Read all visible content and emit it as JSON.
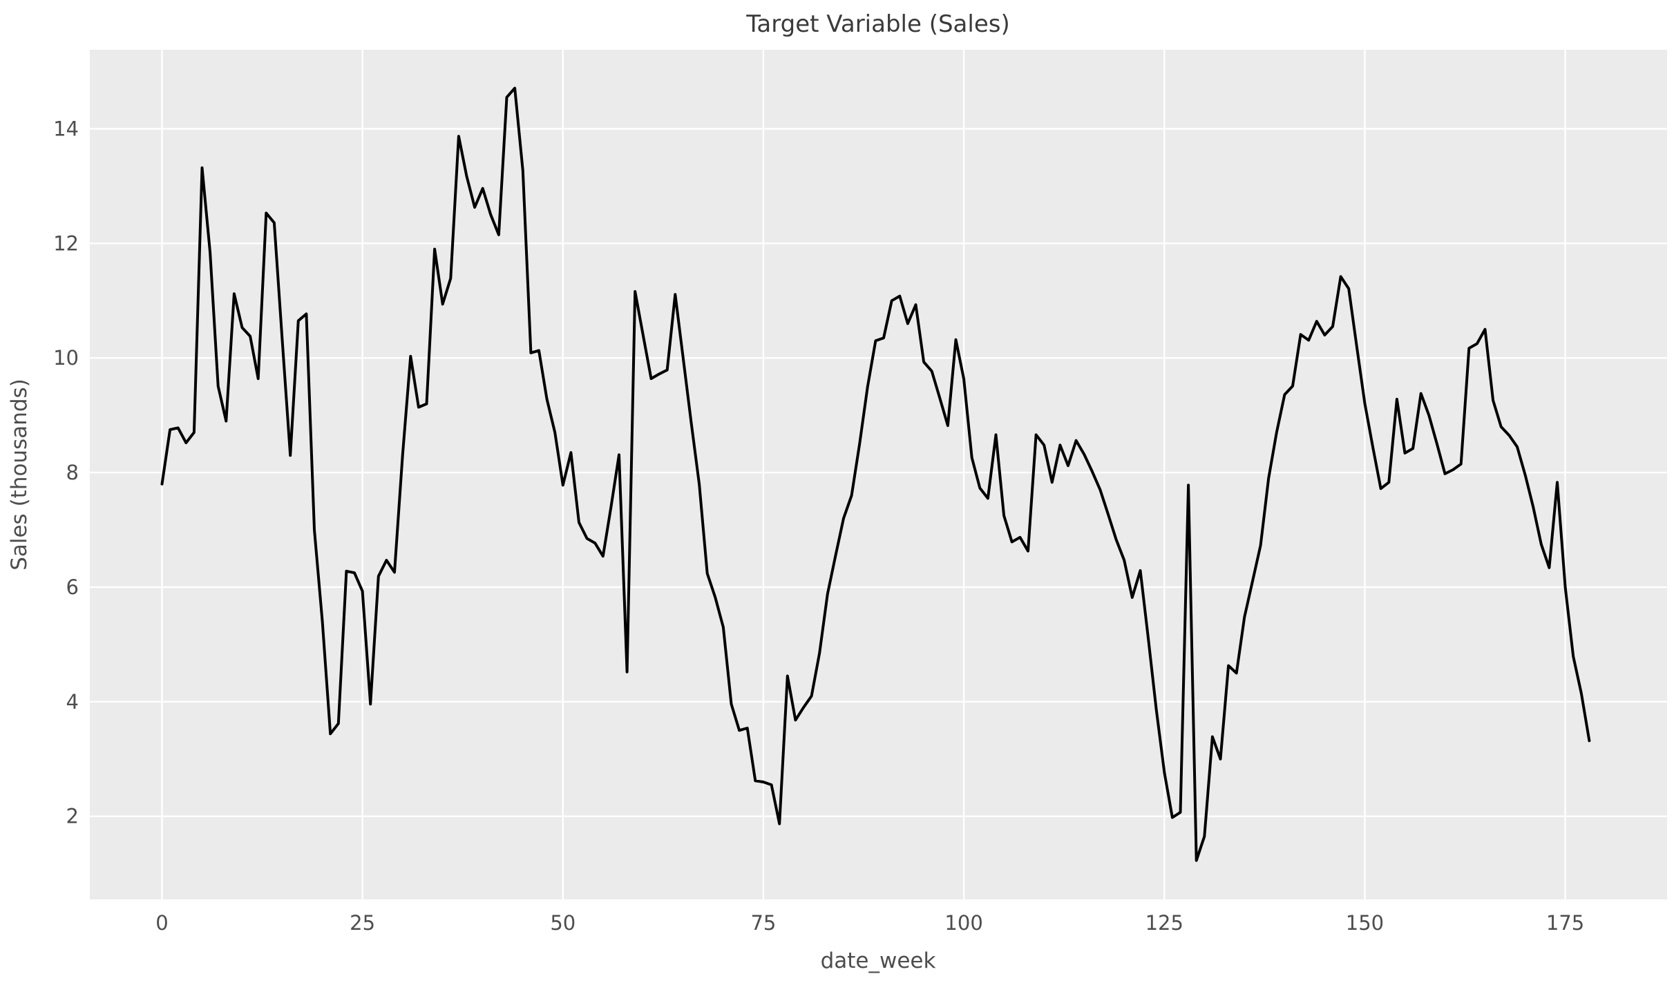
{
  "page": {
    "kind": "matplotlib-figure",
    "style": "ggplot",
    "colors": {
      "figure_background": "#ffffff",
      "plot_background": "#ebebeb",
      "grid": "#ffffff",
      "line": "#000000",
      "title_text": "#3a3a3a",
      "tick_text": "#4d4d4d"
    }
  },
  "chart_data": {
    "type": "line",
    "title": "Target Variable (Sales)",
    "xlabel": "date_week",
    "ylabel": "Sales (thousands)",
    "legend": false,
    "grid": true,
    "x_ticks": [
      0,
      25,
      50,
      75,
      100,
      125,
      150,
      175
    ],
    "y_ticks": [
      2,
      4,
      6,
      8,
      10,
      12,
      14
    ],
    "xlim": [
      -9.0,
      187.7
    ],
    "ylim": [
      0.55,
      15.38
    ],
    "series": [
      {
        "name": "Sales",
        "x_start": 0,
        "x_step": 1,
        "values": [
          7.8,
          8.75,
          8.78,
          8.52,
          8.7,
          13.32,
          11.84,
          9.51,
          8.9,
          11.12,
          10.53,
          10.38,
          9.64,
          12.53,
          12.36,
          10.3,
          8.3,
          10.65,
          10.77,
          7.0,
          5.4,
          3.44,
          3.62,
          6.28,
          6.25,
          5.93,
          3.96,
          6.19,
          6.47,
          6.26,
          8.3,
          10.03,
          9.14,
          9.2,
          11.9,
          10.94,
          11.39,
          13.87,
          13.17,
          12.63,
          12.96,
          12.5,
          12.15,
          14.55,
          14.71,
          13.27,
          10.09,
          10.13,
          9.28,
          8.7,
          7.78,
          8.35,
          7.13,
          6.85,
          6.77,
          6.54,
          7.4,
          8.31,
          4.52,
          11.16,
          10.4,
          9.64,
          9.72,
          9.79,
          11.11,
          9.99,
          8.87,
          7.8,
          6.24,
          5.82,
          5.3,
          3.96,
          3.5,
          3.54,
          2.62,
          2.6,
          2.55,
          1.87,
          4.45,
          3.68,
          3.9,
          4.1,
          4.85,
          5.88,
          6.55,
          7.2,
          7.6,
          8.5,
          9.5,
          10.3,
          10.35,
          11.0,
          11.08,
          10.6,
          10.93,
          9.93,
          9.77,
          9.3,
          8.82,
          10.32,
          9.63,
          8.26,
          7.73,
          7.55,
          8.66,
          7.25,
          6.79,
          6.87,
          6.63,
          8.66,
          8.48,
          7.83,
          8.48,
          8.12,
          8.56,
          8.32,
          8.02,
          7.7,
          7.27,
          6.83,
          6.47,
          5.82,
          6.29,
          5.1,
          3.86,
          2.77,
          1.98,
          2.07,
          7.78,
          1.23,
          1.65,
          3.39,
          3.0,
          4.63,
          4.5,
          5.48,
          6.1,
          6.73,
          7.9,
          8.7,
          9.36,
          9.51,
          10.41,
          10.31,
          10.64,
          10.4,
          10.55,
          11.42,
          11.21,
          10.2,
          9.21,
          8.45,
          7.72,
          7.83,
          9.28,
          8.34,
          8.42,
          9.38,
          9.0,
          8.5,
          7.98,
          8.05,
          8.15,
          10.17,
          10.25,
          10.5,
          9.26,
          8.8,
          8.65,
          8.45,
          7.96,
          7.4,
          6.75,
          6.34,
          7.83,
          6.0,
          4.79,
          4.15,
          3.32
        ]
      }
    ]
  }
}
